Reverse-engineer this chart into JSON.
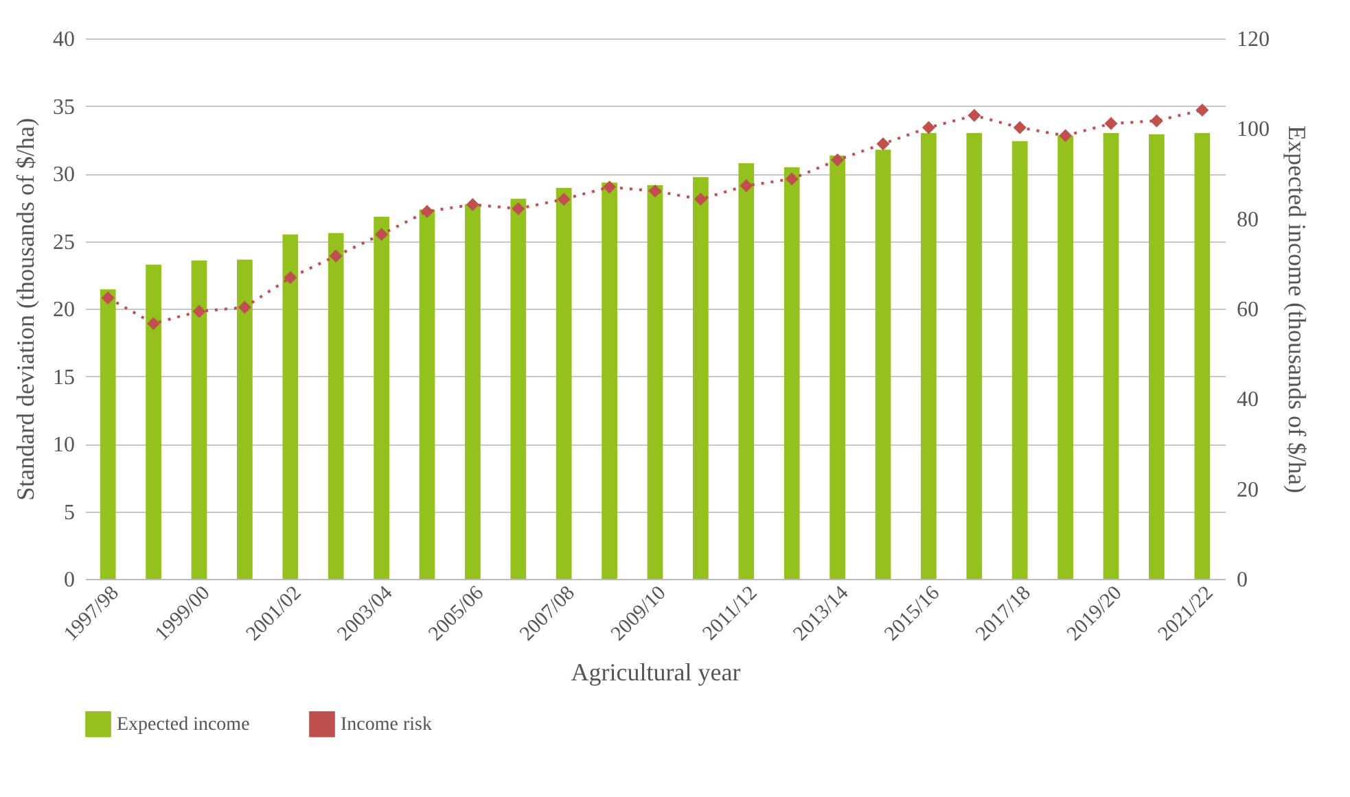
{
  "chart_data": {
    "type": "bar",
    "xlabel": "Agricultural year",
    "ylabel": "Standard deviation (thousands of $/ha)",
    "y2label": "Expected income (thousands of $/ha)",
    "categories": [
      "1997/98",
      null,
      "1999/00",
      null,
      "2001/02",
      null,
      "2003/04",
      null,
      "2005/06",
      null,
      "2007/08",
      null,
      "2009/10",
      null,
      "2011/12",
      null,
      "2013/14",
      null,
      "2015/16",
      null,
      "2017/18",
      null,
      "2019/20",
      null,
      "2021/22"
    ],
    "series": [
      {
        "name": "Expected income",
        "axis": "y2",
        "color": "#95c11f",
        "values": [
          64.3,
          69.8,
          70.7,
          70.9,
          76.5,
          76.8,
          80.4,
          82.0,
          83.2,
          84.4,
          86.8,
          88.0,
          87.4,
          89.2,
          92.3,
          91.4,
          94.0,
          95.3,
          99.0,
          99.0,
          97.2,
          98.4,
          99.0,
          98.7,
          99.0
        ]
      },
      {
        "name": "Income risk",
        "type": "line",
        "color": "#c0504d",
        "marker": "diamond",
        "line_style": "dotted",
        "values": [
          20.8,
          18.9,
          19.8,
          20.1,
          22.3,
          23.9,
          25.5,
          27.2,
          27.7,
          27.4,
          28.1,
          29.0,
          28.7,
          28.1,
          29.1,
          29.6,
          31.0,
          32.2,
          33.4,
          34.3,
          33.4,
          32.8,
          33.7,
          33.9,
          34.7
        ]
      }
    ],
    "ylim": [
      0,
      40
    ],
    "yticks": [
      0,
      5,
      10,
      15,
      20,
      25,
      30,
      35,
      40
    ],
    "y2lim": [
      0,
      120
    ],
    "y2ticks": [
      0,
      20,
      40,
      60,
      80,
      100,
      120
    ],
    "grid": "y",
    "legend": "bottom"
  }
}
